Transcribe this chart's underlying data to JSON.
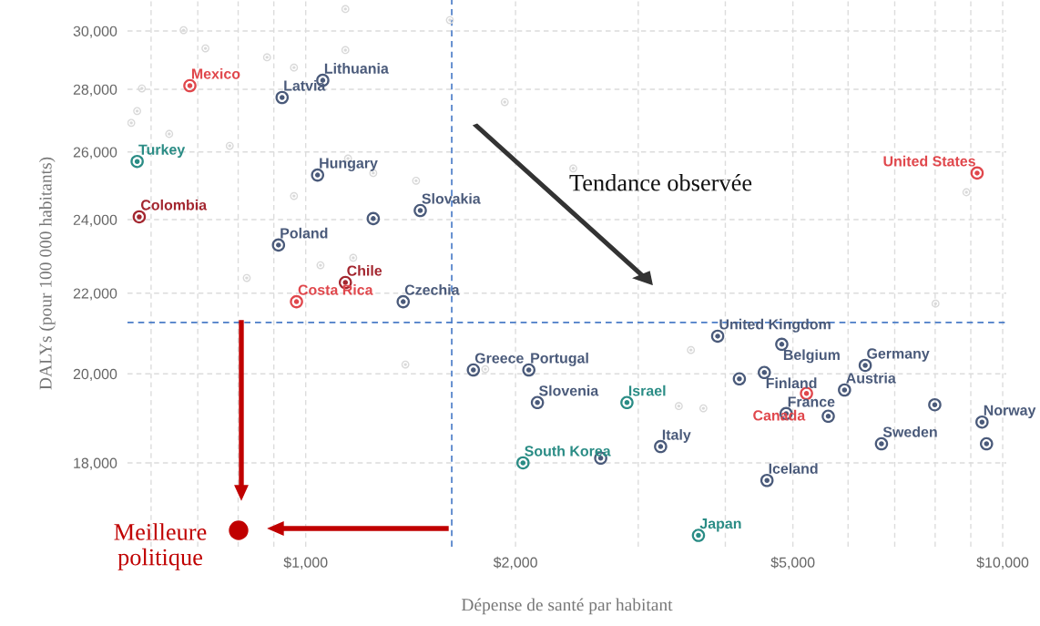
{
  "chart_data": {
    "type": "scatter",
    "xlabel": "Dépense de santé par habitant",
    "ylabel": "DALYs (pour 100 000 habitants)",
    "log": "xy",
    "xlim": [
      555,
      10120
    ],
    "ylim": [
      16300,
      31120
    ],
    "xticks": [
      {
        "value": 600,
        "label": null
      },
      {
        "value": 700,
        "label": null
      },
      {
        "value": 800,
        "label": null
      },
      {
        "value": 900,
        "label": null
      },
      {
        "value": 1000,
        "label": "$1,000"
      },
      {
        "value": 2000,
        "label": "$2,000"
      },
      {
        "value": 3000,
        "label": null
      },
      {
        "value": 4000,
        "label": null
      },
      {
        "value": 5000,
        "label": "$5,000"
      },
      {
        "value": 6000,
        "label": null
      },
      {
        "value": 7000,
        "label": null
      },
      {
        "value": 8000,
        "label": null
      },
      {
        "value": 9000,
        "label": null
      },
      {
        "value": 10000,
        "label": "$10,000"
      }
    ],
    "yticks": [
      {
        "value": 18000,
        "label": "18,000"
      },
      {
        "value": 20000,
        "label": "20,000"
      },
      {
        "value": 22000,
        "label": "22,000"
      },
      {
        "value": 24000,
        "label": "24,000"
      },
      {
        "value": 26000,
        "label": "26,000"
      },
      {
        "value": 28000,
        "label": "28,000"
      },
      {
        "value": 30000,
        "label": "30,000"
      }
    ],
    "grid": true,
    "marker": "circle",
    "series": [
      {
        "color": "#d9d9d9",
        "x": [
          668,
          718,
          582,
          573,
          562,
          637,
          778,
          880,
          962,
          1140,
          1140,
          1150,
          962,
          1250,
          1440,
          1050,
          1170,
          823,
          1390,
          1930,
          2420,
          3570,
          3720,
          3430,
          8010,
          8870,
          1810,
          1610
        ],
        "values": [
          30030,
          29390,
          28030,
          27290,
          26910,
          26560,
          26190,
          29080,
          28730,
          30790,
          29330,
          25800,
          24680,
          25360,
          25130,
          22740,
          22940,
          22400,
          20220,
          27580,
          25500,
          20570,
          19200,
          19250,
          21730,
          24790,
          20110,
          30390
        ]
      },
      {
        "color": "#4a5a7a",
        "x": [
          925,
          1058,
          1040,
          1460,
          1250,
          914,
          1380,
          1740,
          2090,
          2150,
          2650,
          3230,
          3900,
          4820,
          4190,
          4550,
          6350,
          5930,
          4890,
          5620,
          9340,
          7990,
          6700,
          9480,
          4590
        ],
        "values": [
          27730,
          28300,
          25300,
          24260,
          24030,
          23290,
          21780,
          20090,
          20090,
          19330,
          18100,
          18350,
          20910,
          20710,
          19880,
          20030,
          20200,
          19620,
          19080,
          19020,
          18890,
          19280,
          18410,
          18410,
          17630
        ],
        "value_labels": [
          "Latvia",
          "Lithuania",
          "Hungary",
          "Slovakia",
          null,
          "Poland",
          "Czechia",
          "Greece",
          "Portugal",
          "Slovenia",
          null,
          "Italy",
          "United Kingdom",
          "Belgium",
          null,
          "Finland",
          "Germany",
          "Austria",
          "France",
          null,
          "Norway",
          null,
          "Sweden",
          null,
          "Iceland"
        ]
      },
      {
        "color": "#e0474c",
        "x": [
          682,
          970,
          9190,
          5230
        ],
        "values": [
          28120,
          21780,
          25360,
          19540
        ],
        "value_labels": [
          "Mexico",
          "Costa Rica",
          "United States",
          "Canada"
        ]
      },
      {
        "color": "#a3262f",
        "x": [
          577,
          1140
        ],
        "values": [
          24080,
          22280
        ],
        "value_labels": [
          "Colombia",
          "Chile"
        ]
      },
      {
        "color": "#2a8c85",
        "x": [
          573,
          2890,
          2050,
          3660
        ],
        "values": [
          25710,
          19330,
          18000,
          16520
        ],
        "value_labels": [
          "Turkey",
          "Israel",
          "South Korea",
          "Japan"
        ]
      }
    ],
    "ref_lines": [
      {
        "axis": "x",
        "value": 1620,
        "color": "#4a7cc7",
        "line_style": "dashed"
      },
      {
        "axis": "y",
        "value": 21250,
        "color": "#4a7cc7",
        "line_style": "dashed"
      }
    ],
    "annotations": [
      "Tendance observée",
      "Meilleure\npolitique"
    ]
  }
}
